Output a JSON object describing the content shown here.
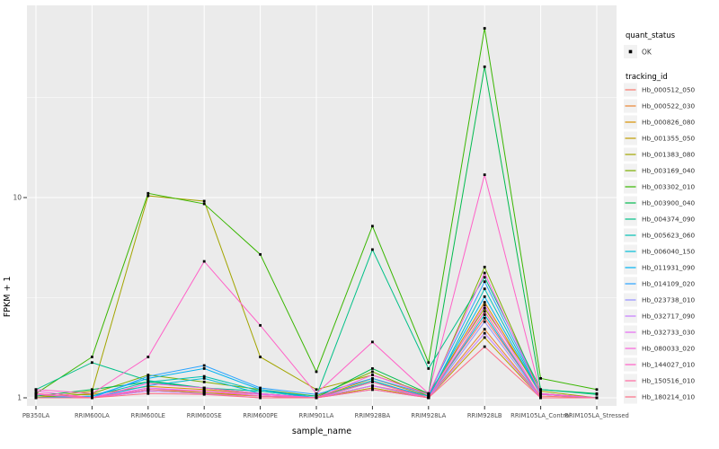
{
  "figure": {
    "xlabel": "sample_name",
    "ylabel": "FPKM + 1",
    "ytick_labels": [
      "1",
      "10"
    ]
  },
  "legend": {
    "quant_status": {
      "title": "quant_status",
      "items": [
        {
          "label": "OK",
          "marker": "black-point"
        }
      ]
    },
    "tracking_id": {
      "title": "tracking_id"
    }
  },
  "chart_data": {
    "type": "line",
    "x_type": "categorical",
    "y_scale": "log10",
    "title": "",
    "xlabel": "sample_name",
    "ylabel": "FPKM + 1",
    "ylim": [
      0.9,
      90
    ],
    "yticks": [
      1,
      10
    ],
    "minor_gridlines": [
      3.1623,
      31.623
    ],
    "panel_bg": "#EBEBEB",
    "grid_color": "#FFFFFF",
    "marker": "black-square",
    "legend_position": "right",
    "quant_status_value": "OK",
    "categories": [
      "PB350LA",
      "RRIM600LA",
      "RRIM600LE",
      "RRIM600SE",
      "RRIM600PE",
      "RRIM901LA",
      "RRIM928BA",
      "RRIM928LA",
      "RRIM928LB",
      "RRIM105LA_Control",
      "RRIM105LA_Stressed"
    ],
    "series": [
      {
        "name": "Hb_000512_050",
        "color": "#F8766D",
        "values": [
          1.05,
          1.0,
          1.1,
          1.08,
          1.04,
          1.0,
          1.15,
          1.02,
          2.5,
          1.02,
          1.0
        ]
      },
      {
        "name": "Hb_000522_030",
        "color": "#EA8331",
        "values": [
          1.0,
          1.0,
          1.08,
          1.05,
          1.02,
          1.0,
          1.2,
          1.0,
          2.2,
          1.0,
          1.0
        ]
      },
      {
        "name": "Hb_000826_080",
        "color": "#D89000",
        "values": [
          1.02,
          1.04,
          1.14,
          1.1,
          1.05,
          1.0,
          1.25,
          1.02,
          3.0,
          1.04,
          1.0
        ]
      },
      {
        "name": "Hb_001355_050",
        "color": "#C09B00",
        "values": [
          1.0,
          1.0,
          1.1,
          1.06,
          1.02,
          1.0,
          1.12,
          1.0,
          2.0,
          1.0,
          1.0
        ]
      },
      {
        "name": "Hb_001383_080",
        "color": "#A3A500",
        "values": [
          1.0,
          1.08,
          10.2,
          9.6,
          1.6,
          1.1,
          1.3,
          1.05,
          2.8,
          1.08,
          1.0
        ]
      },
      {
        "name": "Hb_003169_040",
        "color": "#7CAE00",
        "values": [
          1.0,
          1.05,
          1.3,
          1.2,
          1.1,
          1.02,
          1.35,
          1.02,
          4.5,
          1.05,
          1.0
        ]
      },
      {
        "name": "Hb_003302_010",
        "color": "#39B600",
        "values": [
          1.05,
          1.6,
          10.5,
          9.3,
          5.2,
          1.35,
          7.2,
          1.5,
          70.0,
          1.25,
          1.1
        ]
      },
      {
        "name": "Hb_003900_040",
        "color": "#00BB4E",
        "values": [
          1.02,
          1.1,
          1.2,
          1.12,
          1.05,
          1.0,
          1.4,
          1.05,
          45.0,
          1.1,
          1.05
        ]
      },
      {
        "name": "Hb_004374_090",
        "color": "#00C087",
        "values": [
          1.1,
          1.5,
          1.22,
          1.12,
          1.08,
          1.02,
          5.5,
          1.4,
          4.0,
          1.1,
          1.04
        ]
      },
      {
        "name": "Hb_005623_060",
        "color": "#00C0B2",
        "values": [
          1.0,
          1.02,
          1.2,
          1.28,
          1.08,
          1.0,
          1.22,
          1.0,
          3.5,
          1.04,
          1.0
        ]
      },
      {
        "name": "Hb_006040_150",
        "color": "#00BCD8",
        "values": [
          1.0,
          1.0,
          1.15,
          1.25,
          1.05,
          1.0,
          1.15,
          1.0,
          2.6,
          1.0,
          1.0
        ]
      },
      {
        "name": "Hb_011931_090",
        "color": "#00B3F2",
        "values": [
          1.0,
          1.02,
          1.25,
          1.4,
          1.1,
          1.0,
          1.2,
          1.02,
          3.2,
          1.04,
          1.0
        ]
      },
      {
        "name": "Hb_014109_020",
        "color": "#29A3FF",
        "values": [
          1.0,
          1.0,
          1.28,
          1.45,
          1.12,
          1.04,
          1.25,
          1.04,
          3.8,
          1.05,
          1.0
        ]
      },
      {
        "name": "Hb_023738_010",
        "color": "#9590FF",
        "values": [
          1.0,
          1.0,
          1.1,
          1.08,
          1.02,
          1.0,
          1.1,
          1.0,
          2.4,
          1.0,
          1.0
        ]
      },
      {
        "name": "Hb_032717_090",
        "color": "#C77CFF",
        "values": [
          1.0,
          1.0,
          1.08,
          1.05,
          1.0,
          1.0,
          1.1,
          1.0,
          2.1,
          1.0,
          1.0
        ]
      },
      {
        "name": "Hb_032733_030",
        "color": "#E76BF3",
        "values": [
          1.04,
          1.0,
          1.12,
          1.08,
          1.04,
          1.0,
          1.15,
          1.0,
          2.9,
          1.0,
          1.0
        ]
      },
      {
        "name": "Hb_080033_020",
        "color": "#FA62DB",
        "values": [
          1.08,
          1.0,
          1.18,
          1.12,
          1.05,
          1.0,
          1.3,
          1.04,
          4.2,
          1.04,
          1.0
        ]
      },
      {
        "name": "Hb_144027_010",
        "color": "#FF61C7",
        "values": [
          1.1,
          1.05,
          1.6,
          4.8,
          2.3,
          1.05,
          1.9,
          1.05,
          13.0,
          1.05,
          1.0
        ]
      },
      {
        "name": "Hb_150516_010",
        "color": "#FF68A1",
        "values": [
          1.05,
          1.0,
          1.1,
          1.08,
          1.02,
          1.0,
          1.2,
          1.0,
          2.7,
          1.0,
          1.0
        ]
      },
      {
        "name": "Hb_180214_010",
        "color": "#FD6F86",
        "values": [
          1.0,
          1.0,
          1.05,
          1.04,
          1.0,
          1.0,
          1.1,
          1.0,
          1.8,
          1.0,
          1.0
        ]
      }
    ]
  }
}
